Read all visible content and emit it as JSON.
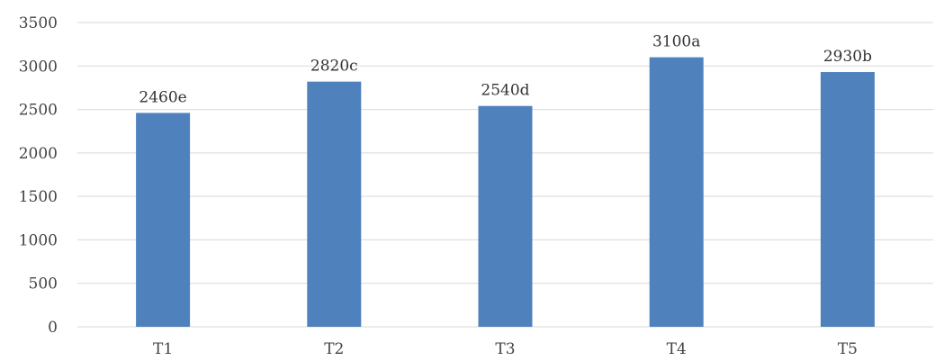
{
  "chart_data": {
    "type": "bar",
    "title": "",
    "xlabel": "",
    "ylabel": "",
    "categories": [
      "T1",
      "T2",
      "T3",
      "T4",
      "T5"
    ],
    "values": [
      2460,
      2820,
      2540,
      3100,
      2930
    ],
    "data_labels": [
      "2460e",
      "2820c",
      "2540d",
      "3100a",
      "2930b"
    ],
    "ylim": [
      0,
      3500
    ],
    "y_ticks": [
      0,
      500,
      1000,
      1500,
      2000,
      2500,
      3000,
      3500
    ],
    "grid": true,
    "legend": "none",
    "colors": {
      "bar": "#4f81bd",
      "grid": "#d9d9d9",
      "text": "#444444"
    }
  }
}
